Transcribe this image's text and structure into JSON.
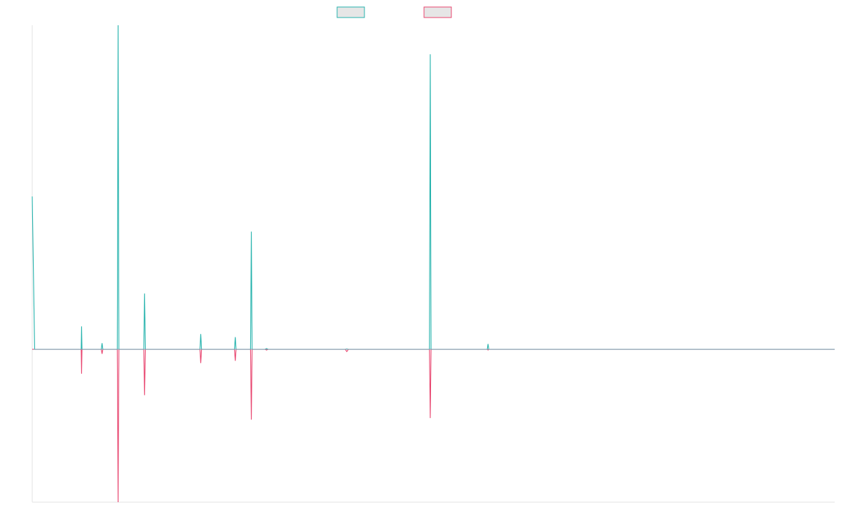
{
  "chart_data": {
    "type": "line",
    "title": "",
    "xlabel": "",
    "ylabel": "",
    "grid": false,
    "legend_position": "top-center",
    "x_range": [
      0,
      1000
    ],
    "y_range": [
      -1,
      2.12
    ],
    "baseline": 0,
    "series": [
      {
        "fill": "#e6e6e6",
        "stroke": "#26b3ad",
        "points": [
          [
            0,
            1.0
          ],
          [
            3,
            0
          ],
          [
            61,
            0
          ],
          [
            61.5,
            0.15
          ],
          [
            62,
            0
          ],
          [
            86,
            0
          ],
          [
            87,
            0.04
          ],
          [
            88,
            0
          ],
          [
            106,
            0
          ],
          [
            107,
            2.12
          ],
          [
            108,
            0
          ],
          [
            139,
            0
          ],
          [
            140,
            0.365
          ],
          [
            141,
            0
          ],
          [
            209,
            0
          ],
          [
            210,
            0.1
          ],
          [
            211,
            0
          ],
          [
            252,
            0
          ],
          [
            253,
            0.08
          ],
          [
            254,
            0
          ],
          [
            272,
            0
          ],
          [
            273,
            0.77
          ],
          [
            274,
            0
          ],
          [
            290,
            0
          ],
          [
            292,
            0.005
          ],
          [
            294,
            0
          ],
          [
            390,
            0
          ],
          [
            392,
            0.002
          ],
          [
            394,
            0
          ],
          [
            495,
            0
          ],
          [
            496,
            1.93
          ],
          [
            497,
            0
          ],
          [
            567,
            0
          ],
          [
            568,
            0.035
          ],
          [
            569,
            0
          ],
          [
            1000,
            0
          ]
        ]
      },
      {
        "fill": "#e6e6e6",
        "stroke": "#e8456f",
        "points": [
          [
            0,
            0
          ],
          [
            61,
            0
          ],
          [
            61.5,
            -0.16
          ],
          [
            62,
            0
          ],
          [
            86,
            0
          ],
          [
            87,
            -0.03
          ],
          [
            88,
            0
          ],
          [
            106,
            0
          ],
          [
            107,
            -1.0
          ],
          [
            108,
            0
          ],
          [
            139,
            0
          ],
          [
            140,
            -0.3
          ],
          [
            141,
            0
          ],
          [
            209,
            0
          ],
          [
            210,
            -0.09
          ],
          [
            211,
            0
          ],
          [
            252,
            0
          ],
          [
            253,
            -0.075
          ],
          [
            254,
            0
          ],
          [
            272,
            0
          ],
          [
            273,
            -0.46
          ],
          [
            274,
            0
          ],
          [
            290,
            0
          ],
          [
            292,
            -0.005
          ],
          [
            294,
            0
          ],
          [
            390,
            0
          ],
          [
            392,
            -0.015
          ],
          [
            394,
            0
          ],
          [
            495,
            0
          ],
          [
            496,
            -0.45
          ],
          [
            497,
            0
          ],
          [
            567,
            0
          ],
          [
            568,
            -0.005
          ],
          [
            569,
            0
          ],
          [
            1000,
            0
          ]
        ]
      }
    ]
  }
}
